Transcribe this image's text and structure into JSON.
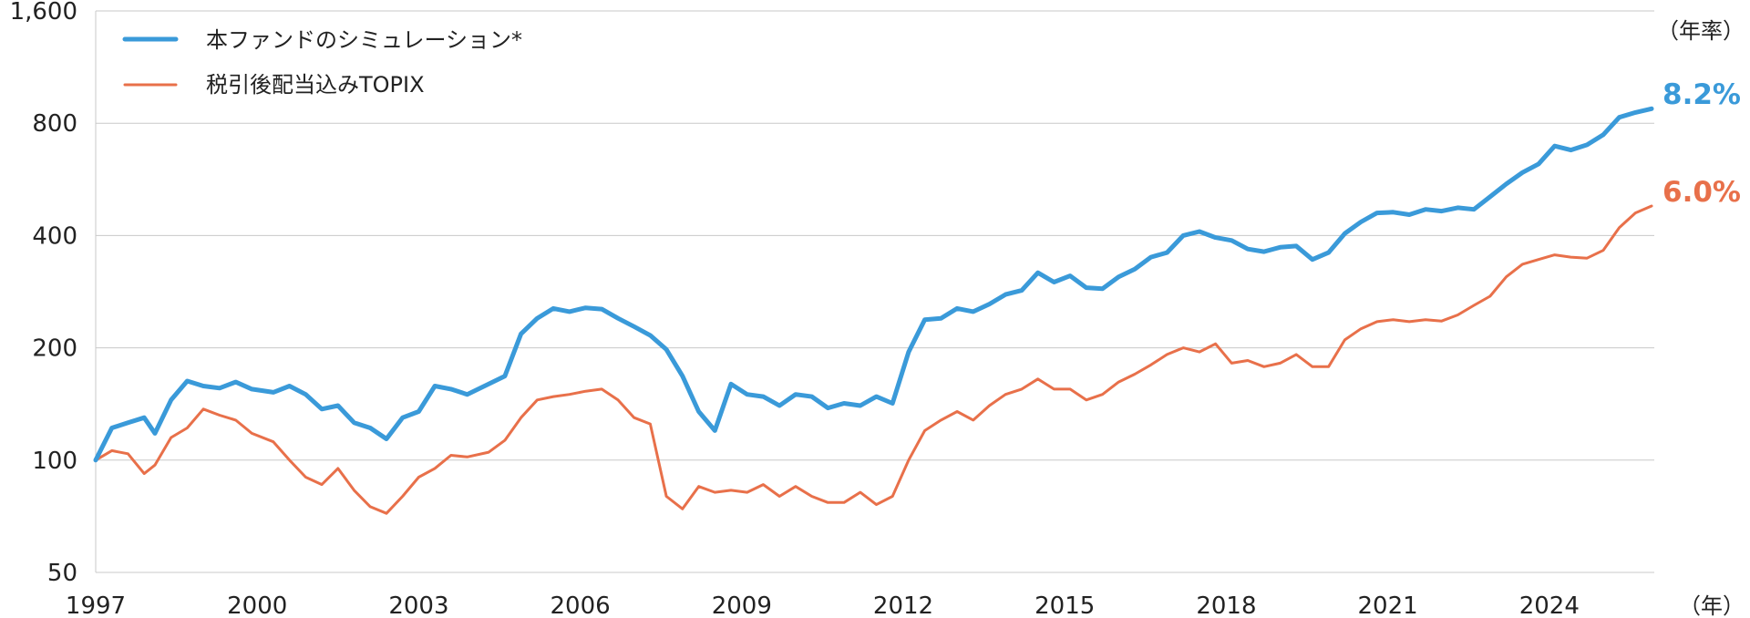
{
  "chart_data": {
    "type": "line",
    "title": "",
    "xlabel": "",
    "ylabel": "",
    "y_scale": "log",
    "ylim": [
      50,
      1600
    ],
    "xlim": [
      1997,
      2025.95
    ],
    "y_ticks": [
      50,
      100,
      200,
      400,
      800,
      1600
    ],
    "y_tick_labels": [
      "50",
      "100",
      "200",
      "400",
      "800",
      "1,600"
    ],
    "x_ticks": [
      1997,
      2000,
      2003,
      2006,
      2009,
      2012,
      2015,
      2018,
      2021,
      2024
    ],
    "x_tick_labels": [
      "1997",
      "2000",
      "2003",
      "2006",
      "2009",
      "2012",
      "2015",
      "2018",
      "2021",
      "2024"
    ],
    "x_unit_label": "（年）",
    "rate_header": "（年率）",
    "grid": true,
    "legend_position": "top-left",
    "series": [
      {
        "name": "本ファンドのシミュレーション*",
        "color": "#3a9ad9",
        "annual_rate": "8.2%",
        "x": [
          1997.0,
          1997.3,
          1997.6,
          1997.9,
          1998.1,
          1998.4,
          1998.7,
          1999.0,
          1999.3,
          1999.6,
          1999.9,
          2000.3,
          2000.6,
          2000.9,
          2001.2,
          2001.5,
          2001.8,
          2002.1,
          2002.4,
          2002.7,
          2003.0,
          2003.3,
          2003.6,
          2003.9,
          2004.3,
          2004.6,
          2004.9,
          2005.2,
          2005.5,
          2005.8,
          2006.1,
          2006.4,
          2006.7,
          2007.0,
          2007.3,
          2007.6,
          2007.9,
          2008.2,
          2008.5,
          2008.8,
          2009.1,
          2009.4,
          2009.7,
          2010.0,
          2010.3,
          2010.6,
          2010.9,
          2011.2,
          2011.5,
          2011.8,
          2012.1,
          2012.4,
          2012.7,
          2013.0,
          2013.3,
          2013.6,
          2013.9,
          2014.2,
          2014.5,
          2014.8,
          2015.1,
          2015.4,
          2015.7,
          2016.0,
          2016.3,
          2016.6,
          2016.9,
          2017.2,
          2017.5,
          2017.8,
          2018.1,
          2018.4,
          2018.7,
          2019.0,
          2019.3,
          2019.6,
          2019.9,
          2020.2,
          2020.5,
          2020.8,
          2021.1,
          2021.4,
          2021.7,
          2022.0,
          2022.3,
          2022.6,
          2022.9,
          2023.2,
          2023.5,
          2023.8,
          2024.1,
          2024.4,
          2024.7,
          2025.0,
          2025.3,
          2025.6,
          2025.9
        ],
        "values": [
          100,
          122,
          126,
          130,
          118,
          145,
          163,
          158,
          156,
          162,
          155,
          152,
          158,
          150,
          137,
          140,
          126,
          122,
          114,
          130,
          135,
          158,
          155,
          150,
          160,
          168,
          218,
          240,
          255,
          250,
          256,
          254,
          240,
          228,
          216,
          198,
          168,
          135,
          120,
          160,
          150,
          148,
          140,
          150,
          148,
          138,
          142,
          140,
          148,
          142,
          195,
          238,
          240,
          255,
          250,
          262,
          278,
          285,
          318,
          300,
          312,
          290,
          288,
          310,
          325,
          350,
          360,
          400,
          410,
          395,
          388,
          368,
          362,
          372,
          375,
          345,
          360,
          405,
          435,
          460,
          462,
          455,
          470,
          465,
          475,
          470,
          508,
          550,
          590,
          622,
          695,
          678,
          700,
          745,
          830,
          855,
          875
        ]
      },
      {
        "name": "税引後配当込みTOPIX",
        "color": "#e8704a",
        "annual_rate": "6.0%",
        "x": [
          1997.0,
          1997.3,
          1997.6,
          1997.9,
          1998.1,
          1998.4,
          1998.7,
          1999.0,
          1999.3,
          1999.6,
          1999.9,
          2000.3,
          2000.6,
          2000.9,
          2001.2,
          2001.5,
          2001.8,
          2002.1,
          2002.4,
          2002.7,
          2003.0,
          2003.3,
          2003.6,
          2003.9,
          2004.3,
          2004.6,
          2004.9,
          2005.2,
          2005.5,
          2005.8,
          2006.1,
          2006.4,
          2006.7,
          2007.0,
          2007.3,
          2007.6,
          2007.9,
          2008.2,
          2008.5,
          2008.8,
          2009.1,
          2009.4,
          2009.7,
          2010.0,
          2010.3,
          2010.6,
          2010.9,
          2011.2,
          2011.5,
          2011.8,
          2012.1,
          2012.4,
          2012.7,
          2013.0,
          2013.3,
          2013.6,
          2013.9,
          2014.2,
          2014.5,
          2014.8,
          2015.1,
          2015.4,
          2015.7,
          2016.0,
          2016.3,
          2016.6,
          2016.9,
          2017.2,
          2017.5,
          2017.8,
          2018.1,
          2018.4,
          2018.7,
          2019.0,
          2019.3,
          2019.6,
          2019.9,
          2020.2,
          2020.5,
          2020.8,
          2021.1,
          2021.4,
          2021.7,
          2022.0,
          2022.3,
          2022.6,
          2022.9,
          2023.2,
          2023.5,
          2023.8,
          2024.1,
          2024.4,
          2024.7,
          2025.0,
          2025.3,
          2025.6,
          2025.9
        ],
        "values": [
          100,
          106,
          104,
          92,
          97,
          115,
          122,
          137,
          132,
          128,
          118,
          112,
          100,
          90,
          86,
          95,
          83,
          75,
          72,
          80,
          90,
          95,
          103,
          102,
          105,
          113,
          130,
          145,
          148,
          150,
          153,
          155,
          145,
          130,
          125,
          80,
          74,
          85,
          82,
          83,
          82,
          86,
          80,
          85,
          80,
          77,
          77,
          82,
          76,
          80,
          100,
          120,
          128,
          135,
          128,
          140,
          150,
          155,
          165,
          155,
          155,
          145,
          150,
          162,
          170,
          180,
          192,
          200,
          195,
          205,
          182,
          185,
          178,
          182,
          192,
          178,
          178,
          210,
          225,
          235,
          238,
          235,
          238,
          236,
          245,
          260,
          275,
          310,
          335,
          345,
          355,
          350,
          348,
          365,
          420,
          460,
          480
        ]
      }
    ]
  }
}
